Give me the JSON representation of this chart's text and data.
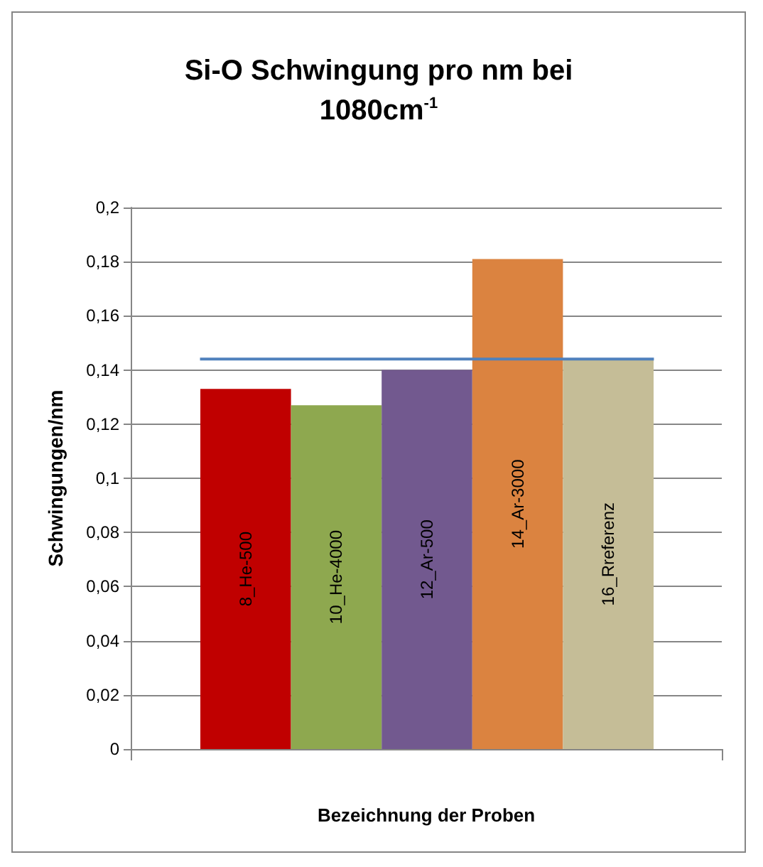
{
  "chart_data": {
    "type": "bar",
    "title": "Si-O Schwingung pro nm bei 1080cm$^{-1}$",
    "xlabel": "Bezeichnung der Proben",
    "ylabel": "Schwingungen/nm",
    "categories": [
      "8_He-500",
      "10_He-4000",
      "12_Ar-500",
      "14_Ar-3000",
      "16_Rreferenz"
    ],
    "values": [
      0.133,
      0.127,
      0.14,
      0.181,
      0.144
    ],
    "colors": [
      "#c00000",
      "#8ea84f",
      "#72598f",
      "#db8340",
      "#c5bd97"
    ],
    "ylim": [
      0,
      0.2
    ],
    "yticks": [
      {
        "value": 0,
        "label": "0"
      },
      {
        "value": 0.02,
        "label": "0,02"
      },
      {
        "value": 0.04,
        "label": "0,04"
      },
      {
        "value": 0.06,
        "label": "0,06"
      },
      {
        "value": 0.08,
        "label": "0,08"
      },
      {
        "value": 0.1,
        "label": "0,1"
      },
      {
        "value": 0.12,
        "label": "0,12"
      },
      {
        "value": 0.14,
        "label": "0,14"
      },
      {
        "value": 0.16,
        "label": "0,16"
      },
      {
        "value": 0.18,
        "label": "0,18"
      },
      {
        "value": 0.2,
        "label": "0,2"
      }
    ],
    "ref_lines": [
      {
        "axis": "y",
        "value": 0.144,
        "color": "#4f81bd"
      }
    ],
    "grid": "y"
  }
}
